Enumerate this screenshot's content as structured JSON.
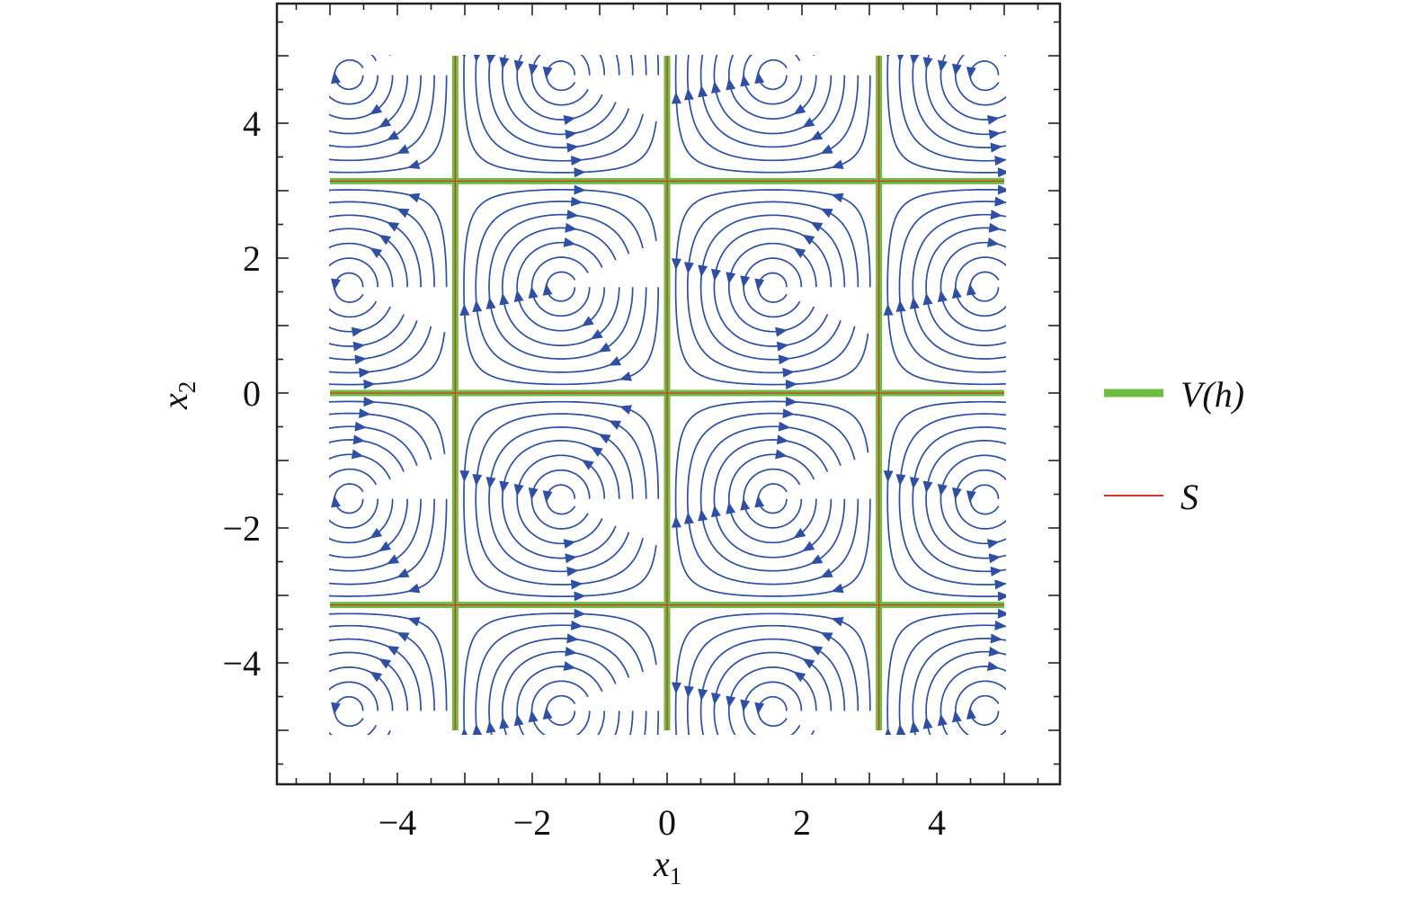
{
  "chart_data": {
    "type": "streamplot",
    "title": "",
    "xlabel": {
      "base": "x",
      "sub": "1"
    },
    "ylabel": {
      "base": "x",
      "sub": "2"
    },
    "xlim": [
      -5.85,
      5.75
    ],
    "ylim": [
      -5.85,
      5.75
    ],
    "field_domain": [
      -5,
      5
    ],
    "field": "x1' = sin(x1)·cos(x2), x2' = -cos(x1)·sin(x2)",
    "xticks": [
      {
        "value": -4,
        "label": "−4"
      },
      {
        "value": -2,
        "label": "−2"
      },
      {
        "value": 0,
        "label": "0"
      },
      {
        "value": 2,
        "label": "2"
      },
      {
        "value": 4,
        "label": "4"
      }
    ],
    "yticks": [
      {
        "value": 4,
        "label": "4"
      },
      {
        "value": 2,
        "label": "2"
      },
      {
        "value": 0,
        "label": "0"
      },
      {
        "value": -2,
        "label": "−2"
      },
      {
        "value": -4,
        "label": "−4"
      }
    ],
    "minor_tick_step": 0.5,
    "vertical_lines": [
      -3.14159,
      0,
      3.14159
    ],
    "horizontal_lines": [
      -3.14159,
      0,
      3.14159
    ],
    "vortex_centers": [
      [
        -4.712,
        4.712
      ],
      [
        -1.571,
        4.712
      ],
      [
        1.571,
        4.712
      ],
      [
        4.712,
        4.712
      ],
      [
        -4.712,
        1.571
      ],
      [
        -1.571,
        1.571
      ],
      [
        1.571,
        1.571
      ],
      [
        4.712,
        1.571
      ],
      [
        -4.712,
        -1.571
      ],
      [
        -1.571,
        -1.571
      ],
      [
        1.571,
        -1.571
      ],
      [
        4.712,
        -1.571
      ],
      [
        -4.712,
        -4.712
      ],
      [
        -1.571,
        -4.712
      ],
      [
        1.571,
        -4.712
      ],
      [
        4.712,
        -4.712
      ]
    ],
    "colors": {
      "stream": "#2e4fa3",
      "green_line": "#6dbd45",
      "red_line": "#d9342b",
      "frame": "#222222"
    },
    "legend": {
      "position": "right",
      "entries": [
        {
          "label": "V(h)",
          "color": "#6dbd45",
          "style": "thick-line"
        },
        {
          "label": "S",
          "color": "#d9342b",
          "style": "thin-line"
        }
      ]
    },
    "grid": false
  }
}
